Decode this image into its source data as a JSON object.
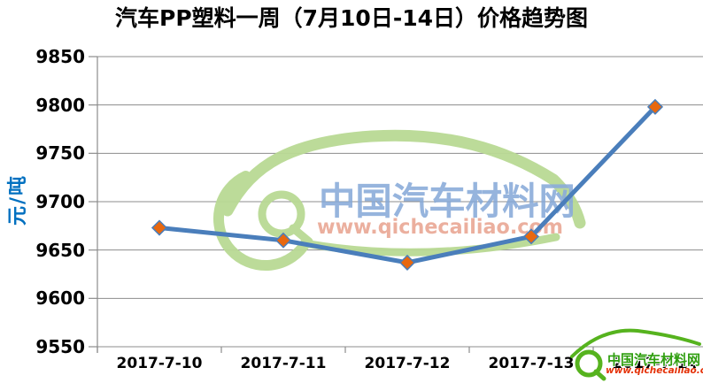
{
  "chart_data": {
    "type": "line",
    "title": "汽车PP塑料一周（7月10日-14日）价格趋势图",
    "categories": [
      "2017-7-10",
      "2017-7-11",
      "2017-7-12",
      "2017-7-13",
      "2017-7-14"
    ],
    "values": [
      9673,
      9660,
      9637,
      9664,
      9798
    ],
    "xlabel": "",
    "ylabel": "元/吨",
    "ylim": [
      9550,
      9850
    ],
    "ytick_step": 50,
    "yticks": [
      9550,
      9600,
      9650,
      9700,
      9750,
      9800,
      9850
    ],
    "grid": true,
    "legend": "none",
    "colors": {
      "line": "#4a7ebb",
      "marker": "#e8680f",
      "gridline": "#8c8c8c",
      "axis": "#8c8c8c",
      "y_axis_title": "#0070c0",
      "tick_text": "#000000",
      "watermark_green": "#b9da94",
      "logo_green": "#56b31e"
    }
  },
  "watermark": {
    "brand": "中国汽车材料网",
    "url": "www.qichecailiao.com"
  },
  "logo": {
    "brand": "中国汽车材料网",
    "url": "www.qichecailiao.com"
  }
}
